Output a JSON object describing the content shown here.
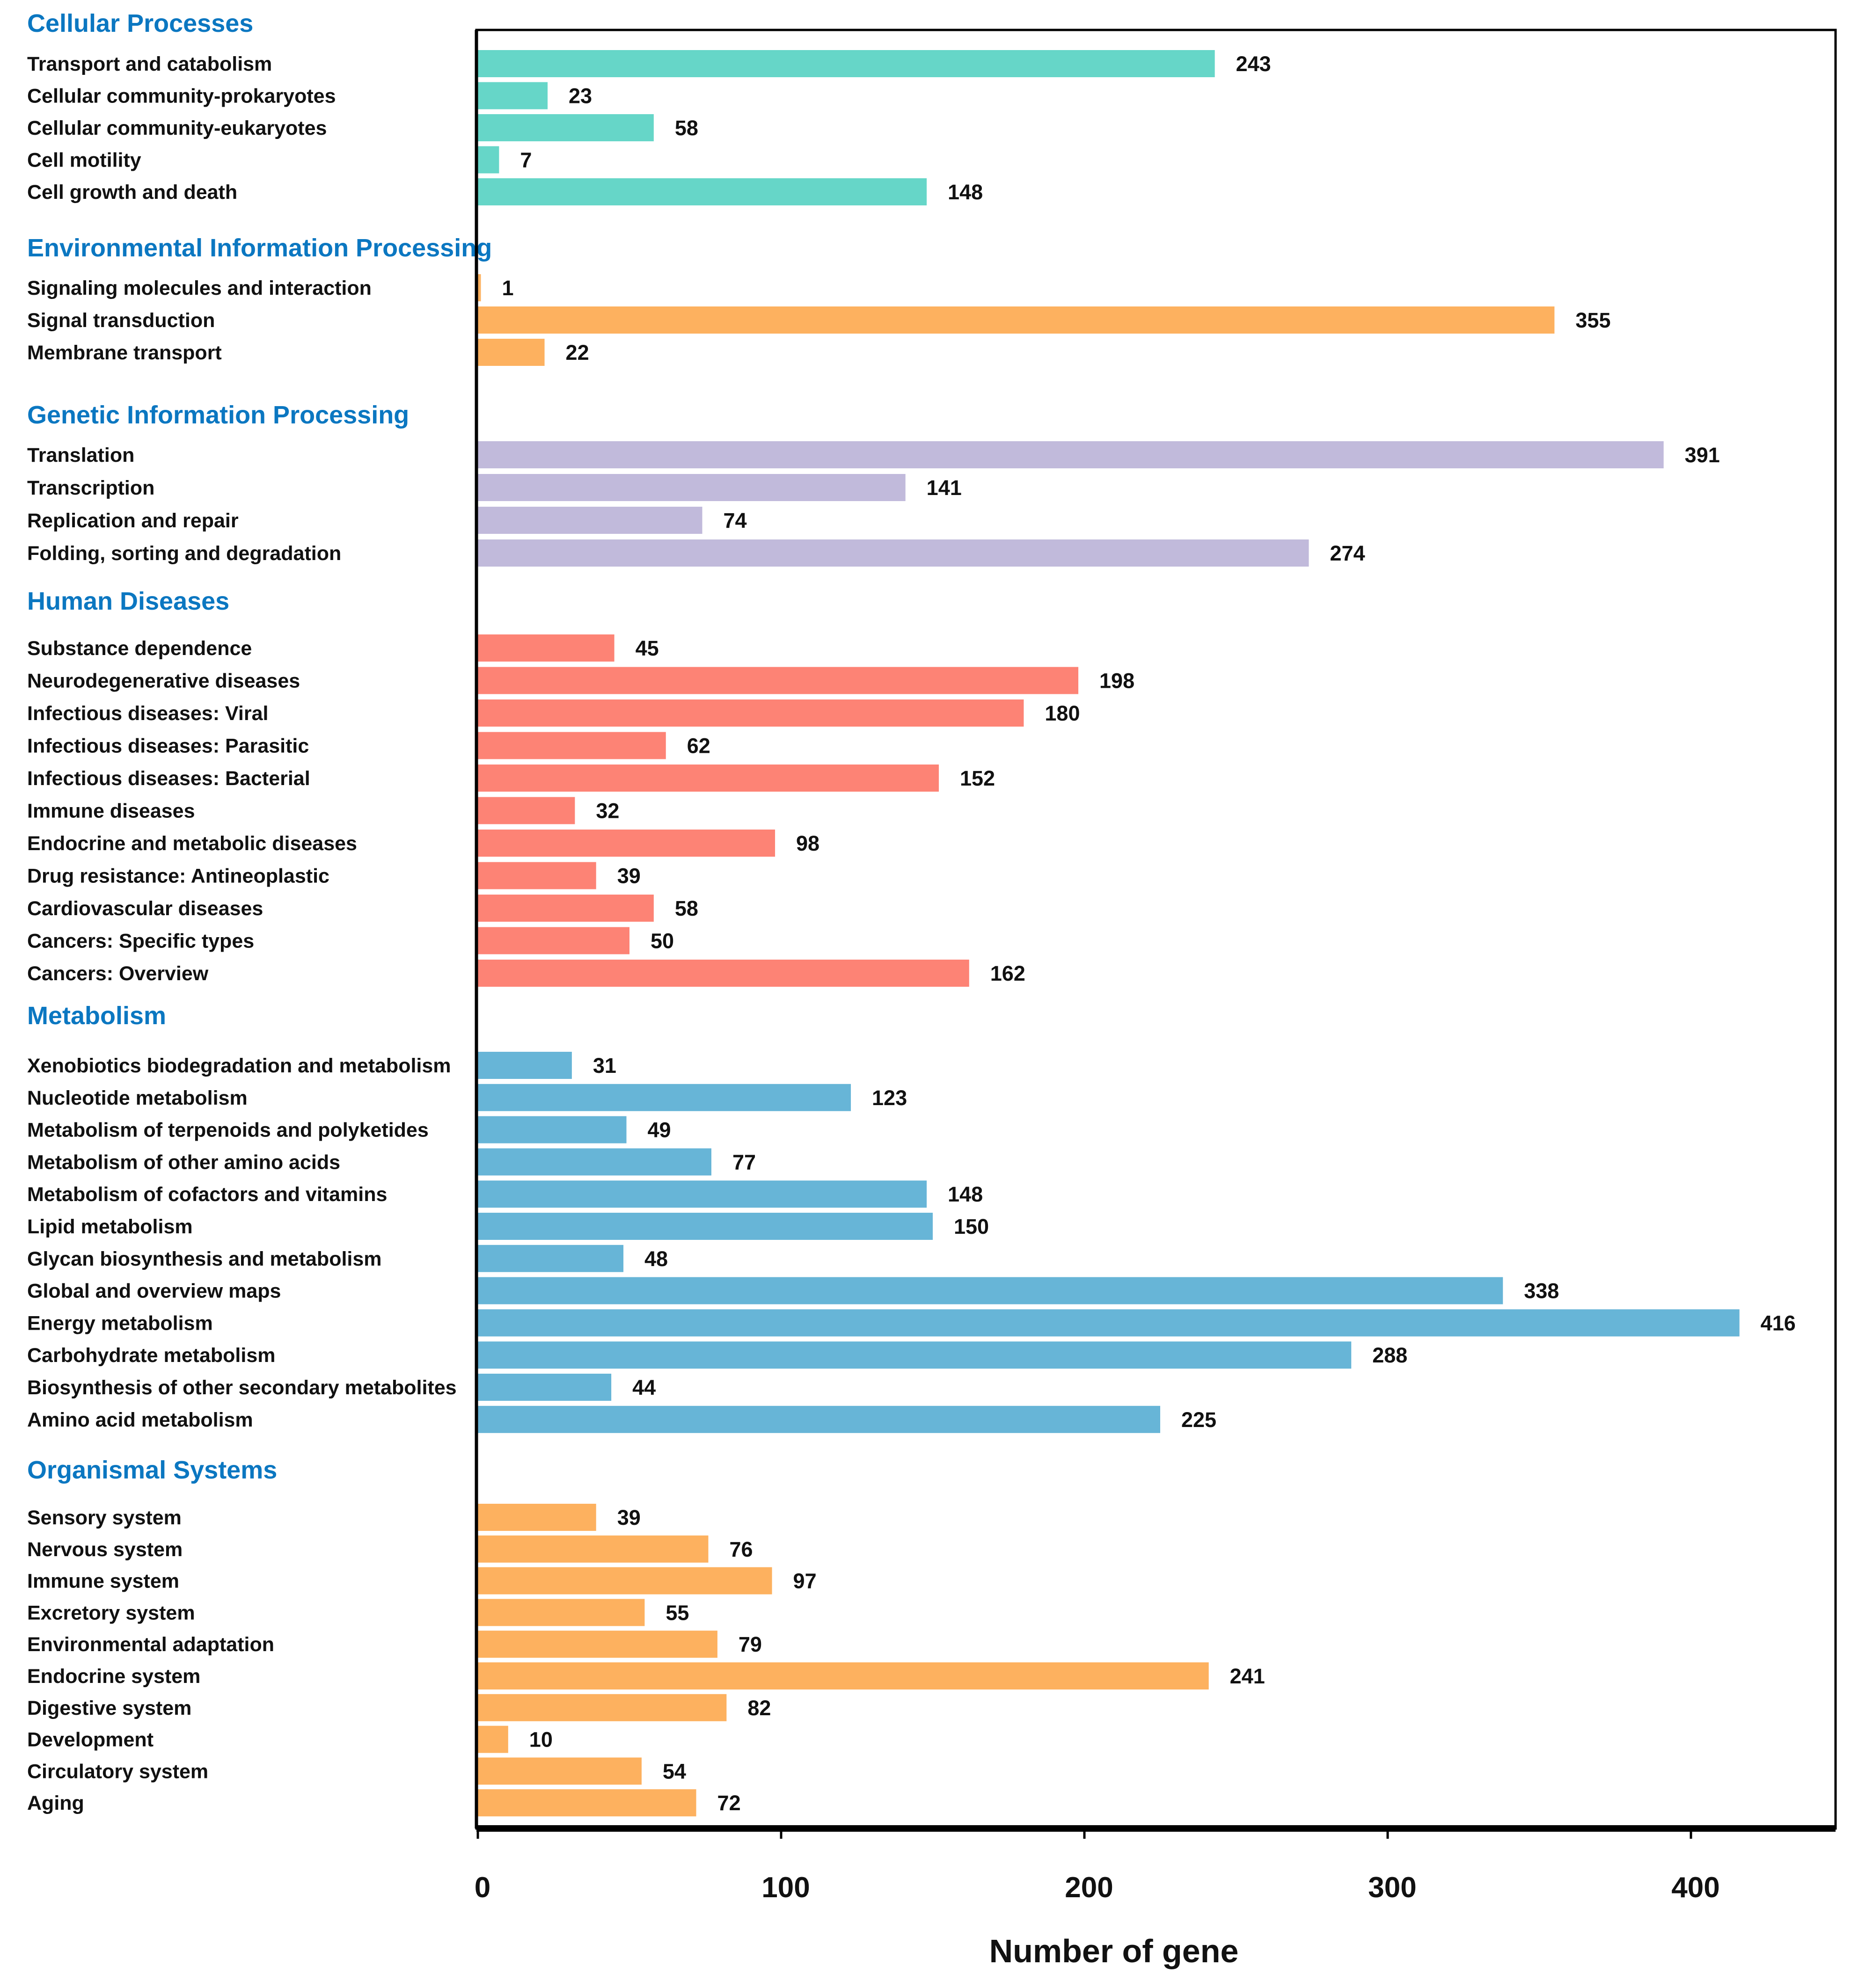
{
  "chart_data": {
    "type": "bar",
    "orientation": "horizontal",
    "xlabel": "Number of gene",
    "xlim": [
      0,
      450
    ],
    "xticks": [
      0,
      100,
      200,
      300,
      400
    ],
    "grid": false,
    "groups": [
      {
        "name": "Cellular Processes",
        "color": "#66D6C8",
        "categories": [
          "Transport and catabolism",
          "Cellular community-prokaryotes",
          "Cellular community-eukaryotes",
          "Cell motility",
          "Cell growth and death"
        ],
        "values": [
          243,
          23,
          58,
          7,
          148
        ]
      },
      {
        "name": "Environmental Information Processing",
        "color": "#FDB15F",
        "categories": [
          "Signaling molecules and interaction",
          "Signal transduction",
          "Membrane transport"
        ],
        "values": [
          1,
          355,
          22
        ]
      },
      {
        "name": "Genetic Information Processing",
        "color": "#C1BADB",
        "categories": [
          "Translation",
          "Transcription",
          "Replication and repair",
          "Folding, sorting and degradation"
        ],
        "values": [
          391,
          141,
          74,
          274
        ]
      },
      {
        "name": "Human Diseases",
        "color": "#FD8375",
        "categories": [
          "Substance dependence",
          "Neurodegenerative diseases",
          "Infectious diseases: Viral",
          "Infectious diseases: Parasitic",
          "Infectious diseases: Bacterial",
          "Immune diseases",
          "Endocrine and metabolic diseases",
          "Drug resistance: Antineoplastic",
          "Cardiovascular diseases",
          "Cancers: Specific types",
          "Cancers: Overview"
        ],
        "values": [
          45,
          198,
          180,
          62,
          152,
          32,
          98,
          39,
          58,
          50,
          162
        ]
      },
      {
        "name": "Metabolism",
        "color": "#67B5D7",
        "categories": [
          "Xenobiotics biodegradation and metabolism",
          "Nucleotide metabolism",
          "Metabolism of terpenoids and polyketides",
          "Metabolism of other amino acids",
          "Metabolism of cofactors and vitamins",
          "Lipid metabolism",
          "Glycan biosynthesis and metabolism",
          "Global and overview maps",
          "Energy metabolism",
          "Carbohydrate metabolism",
          "Biosynthesis of other secondary metabolites",
          "Amino acid metabolism"
        ],
        "values": [
          31,
          123,
          49,
          77,
          148,
          150,
          48,
          338,
          416,
          288,
          44,
          225
        ]
      },
      {
        "name": "Organismal Systems",
        "color": "#FDB15F",
        "categories": [
          "Sensory system",
          "Nervous system",
          "Immune system",
          "Excretory system",
          "Environmental adaptation",
          "Endocrine system",
          "Digestive system",
          "Development",
          "Circulatory system",
          "Aging"
        ],
        "values": [
          39,
          76,
          97,
          55,
          79,
          241,
          82,
          10,
          54,
          72
        ]
      }
    ]
  },
  "style": {
    "group_label_color": "#0B77C1",
    "axis_color": "#000000"
  }
}
